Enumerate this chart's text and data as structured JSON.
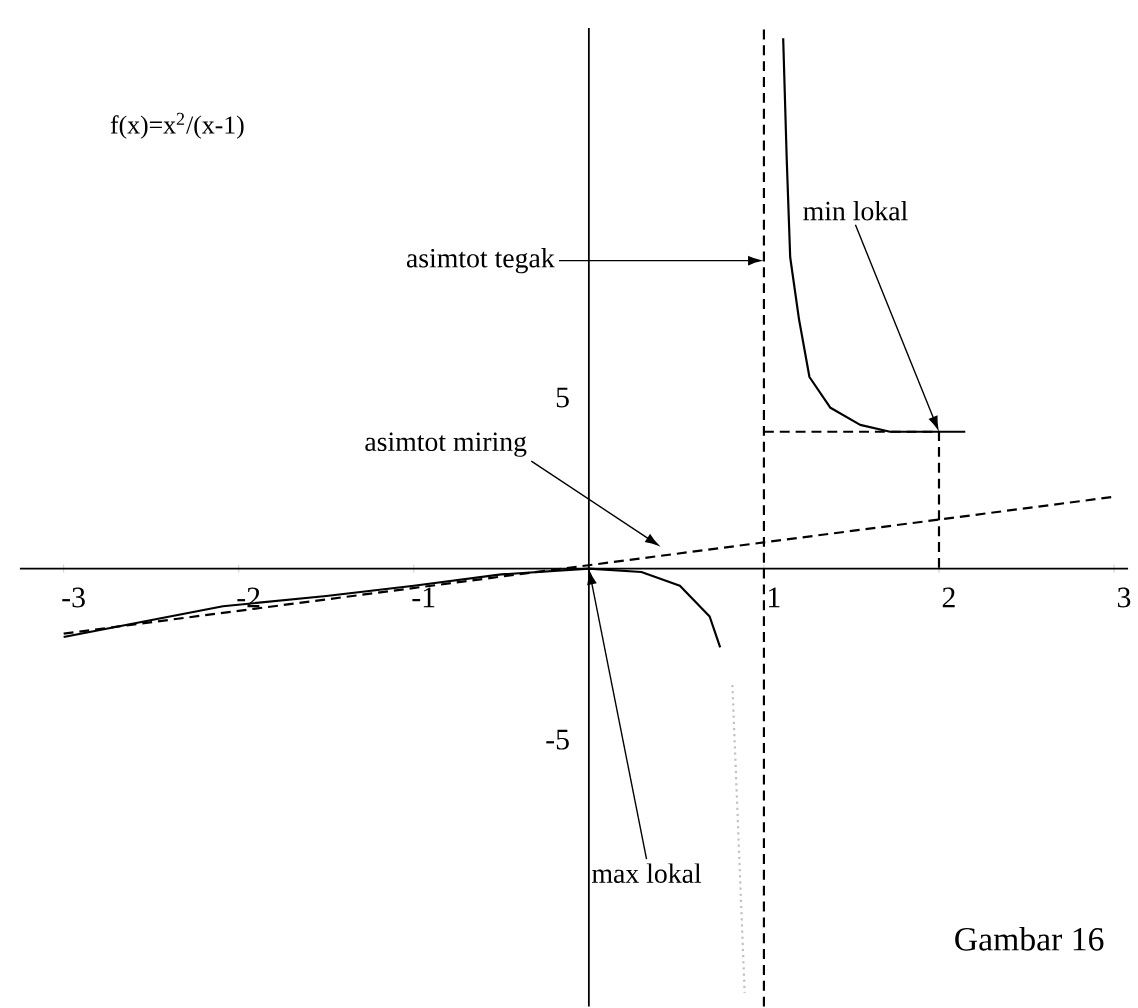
{
  "chart_data": {
    "type": "line",
    "title": "f(x)=x$^{2}$/(x-1)",
    "xlim": [
      -3.25,
      3.08
    ],
    "ylim": [
      -12.8,
      15.8
    ],
    "xticks": [
      -3,
      -2,
      -1,
      1,
      2,
      3
    ],
    "yticks": [
      -5,
      5
    ],
    "series": [
      {
        "color": "#000000",
        "line_style": "solid",
        "x": [
          1.11,
          1.13,
          1.15,
          1.2,
          1.26,
          1.38,
          1.55,
          1.72,
          2,
          2.15
        ],
        "values": [
          15.5,
          12,
          9.1,
          7.3,
          5.6,
          4.7,
          4.2,
          4,
          4,
          4
        ]
      },
      {
        "color": "#000000",
        "line_style": "solid",
        "x": [
          -3,
          -2.09,
          -1.5,
          -1,
          -0.5,
          0,
          0.3,
          0.52,
          0.69,
          0.75
        ],
        "values": [
          -2,
          -1.1,
          -0.8,
          -0.5,
          -0.17,
          0,
          -0.1,
          -0.5,
          -1.4,
          -2.3
        ]
      },
      {
        "color": "#c0c0c0",
        "line_style": "dotted",
        "x": [
          0.82,
          0.89
        ],
        "values": [
          -3.4,
          -12.4
        ]
      },
      {
        "color": "#000000",
        "line_style": "dashed",
        "x": [
          -3,
          3
        ],
        "values": [
          -1.9,
          2.1
        ]
      },
      {
        "color": "#000000",
        "line_style": "dashed",
        "x": [
          1,
          2,
          2
        ],
        "values": [
          4,
          4,
          0
        ]
      }
    ],
    "ref_lines": [
      {
        "axis": "x",
        "value": 1,
        "line_style": "dashed"
      }
    ],
    "annotations": [
      {
        "text": "asimtot tegak",
        "x": 1,
        "y": 9
      },
      {
        "text": "min lokal",
        "x": 2,
        "y": 4
      },
      {
        "text": "asimtot miring",
        "x": 0.41,
        "y": 0.64
      },
      {
        "text": "max lokal",
        "x": 0,
        "y": 0
      },
      "Gambar 16"
    ]
  }
}
